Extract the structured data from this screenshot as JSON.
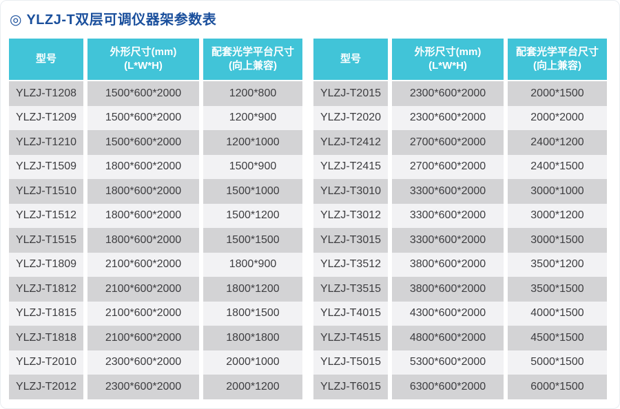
{
  "page": {
    "title_icon": "◎",
    "title": "YLZJ-T双层可调仪器架参数表",
    "title_color": "#1a4f9c",
    "header_bg": "#41c4d8",
    "header_text_color": "#ffffff",
    "row_dark_bg": "#d3d3d5",
    "row_light_bg": "#f2f2f4",
    "cell_text_color": "#3d3d40"
  },
  "columns": [
    {
      "line1": "型号",
      "line2": ""
    },
    {
      "line1": "外形尺寸(mm)",
      "line2": "(L*W*H)"
    },
    {
      "line1": "配套光学平台尺寸",
      "line2": "(向上兼容)"
    }
  ],
  "tables": [
    {
      "rows": [
        [
          "YLZJ-T1208",
          "1500*600*2000",
          "1200*800"
        ],
        [
          "YLZJ-T1209",
          "1500*600*2000",
          "1200*900"
        ],
        [
          "YLZJ-T1210",
          "1500*600*2000",
          "1200*1000"
        ],
        [
          "YLZJ-T1509",
          "1800*600*2000",
          "1500*900"
        ],
        [
          "YLZJ-T1510",
          "1800*600*2000",
          "1500*1000"
        ],
        [
          "YLZJ-T1512",
          "1800*600*2000",
          "1500*1200"
        ],
        [
          "YLZJ-T1515",
          "1800*600*2000",
          "1500*1500"
        ],
        [
          "YLZJ-T1809",
          "2100*600*2000",
          "1800*900"
        ],
        [
          "YLZJ-T1812",
          "2100*600*2000",
          "1800*1200"
        ],
        [
          "YLZJ-T1815",
          "2100*600*2000",
          "1800*1500"
        ],
        [
          "YLZJ-T1818",
          "2100*600*2000",
          "1800*1800"
        ],
        [
          "YLZJ-T2010",
          "2300*600*2000",
          "2000*1000"
        ],
        [
          "YLZJ-T2012",
          "2300*600*2000",
          "2000*1200"
        ]
      ]
    },
    {
      "rows": [
        [
          "YLZJ-T2015",
          "2300*600*2000",
          "2000*1500"
        ],
        [
          "YLZJ-T2020",
          "2300*600*2000",
          "2000*2000"
        ],
        [
          "YLZJ-T2412",
          "2700*600*2000",
          "2400*1200"
        ],
        [
          "YLZJ-T2415",
          "2700*600*2000",
          "2400*1500"
        ],
        [
          "YLZJ-T3010",
          "3300*600*2000",
          "3000*1000"
        ],
        [
          "YLZJ-T3012",
          "3300*600*2000",
          "3000*1200"
        ],
        [
          "YLZJ-T3015",
          "3300*600*2000",
          "3000*1500"
        ],
        [
          "YLZJ-T3512",
          "3800*600*2000",
          "3500*1200"
        ],
        [
          "YLZJ-T3515",
          "3800*600*2000",
          "3500*1500"
        ],
        [
          "YLZJ-T4015",
          "4300*600*2000",
          "4000*1500"
        ],
        [
          "YLZJ-T4515",
          "4800*600*2000",
          "4500*1500"
        ],
        [
          "YLZJ-T5015",
          "5300*600*2000",
          "5000*1500"
        ],
        [
          "YLZJ-T6015",
          "6300*600*2000",
          "6000*1500"
        ]
      ]
    }
  ]
}
